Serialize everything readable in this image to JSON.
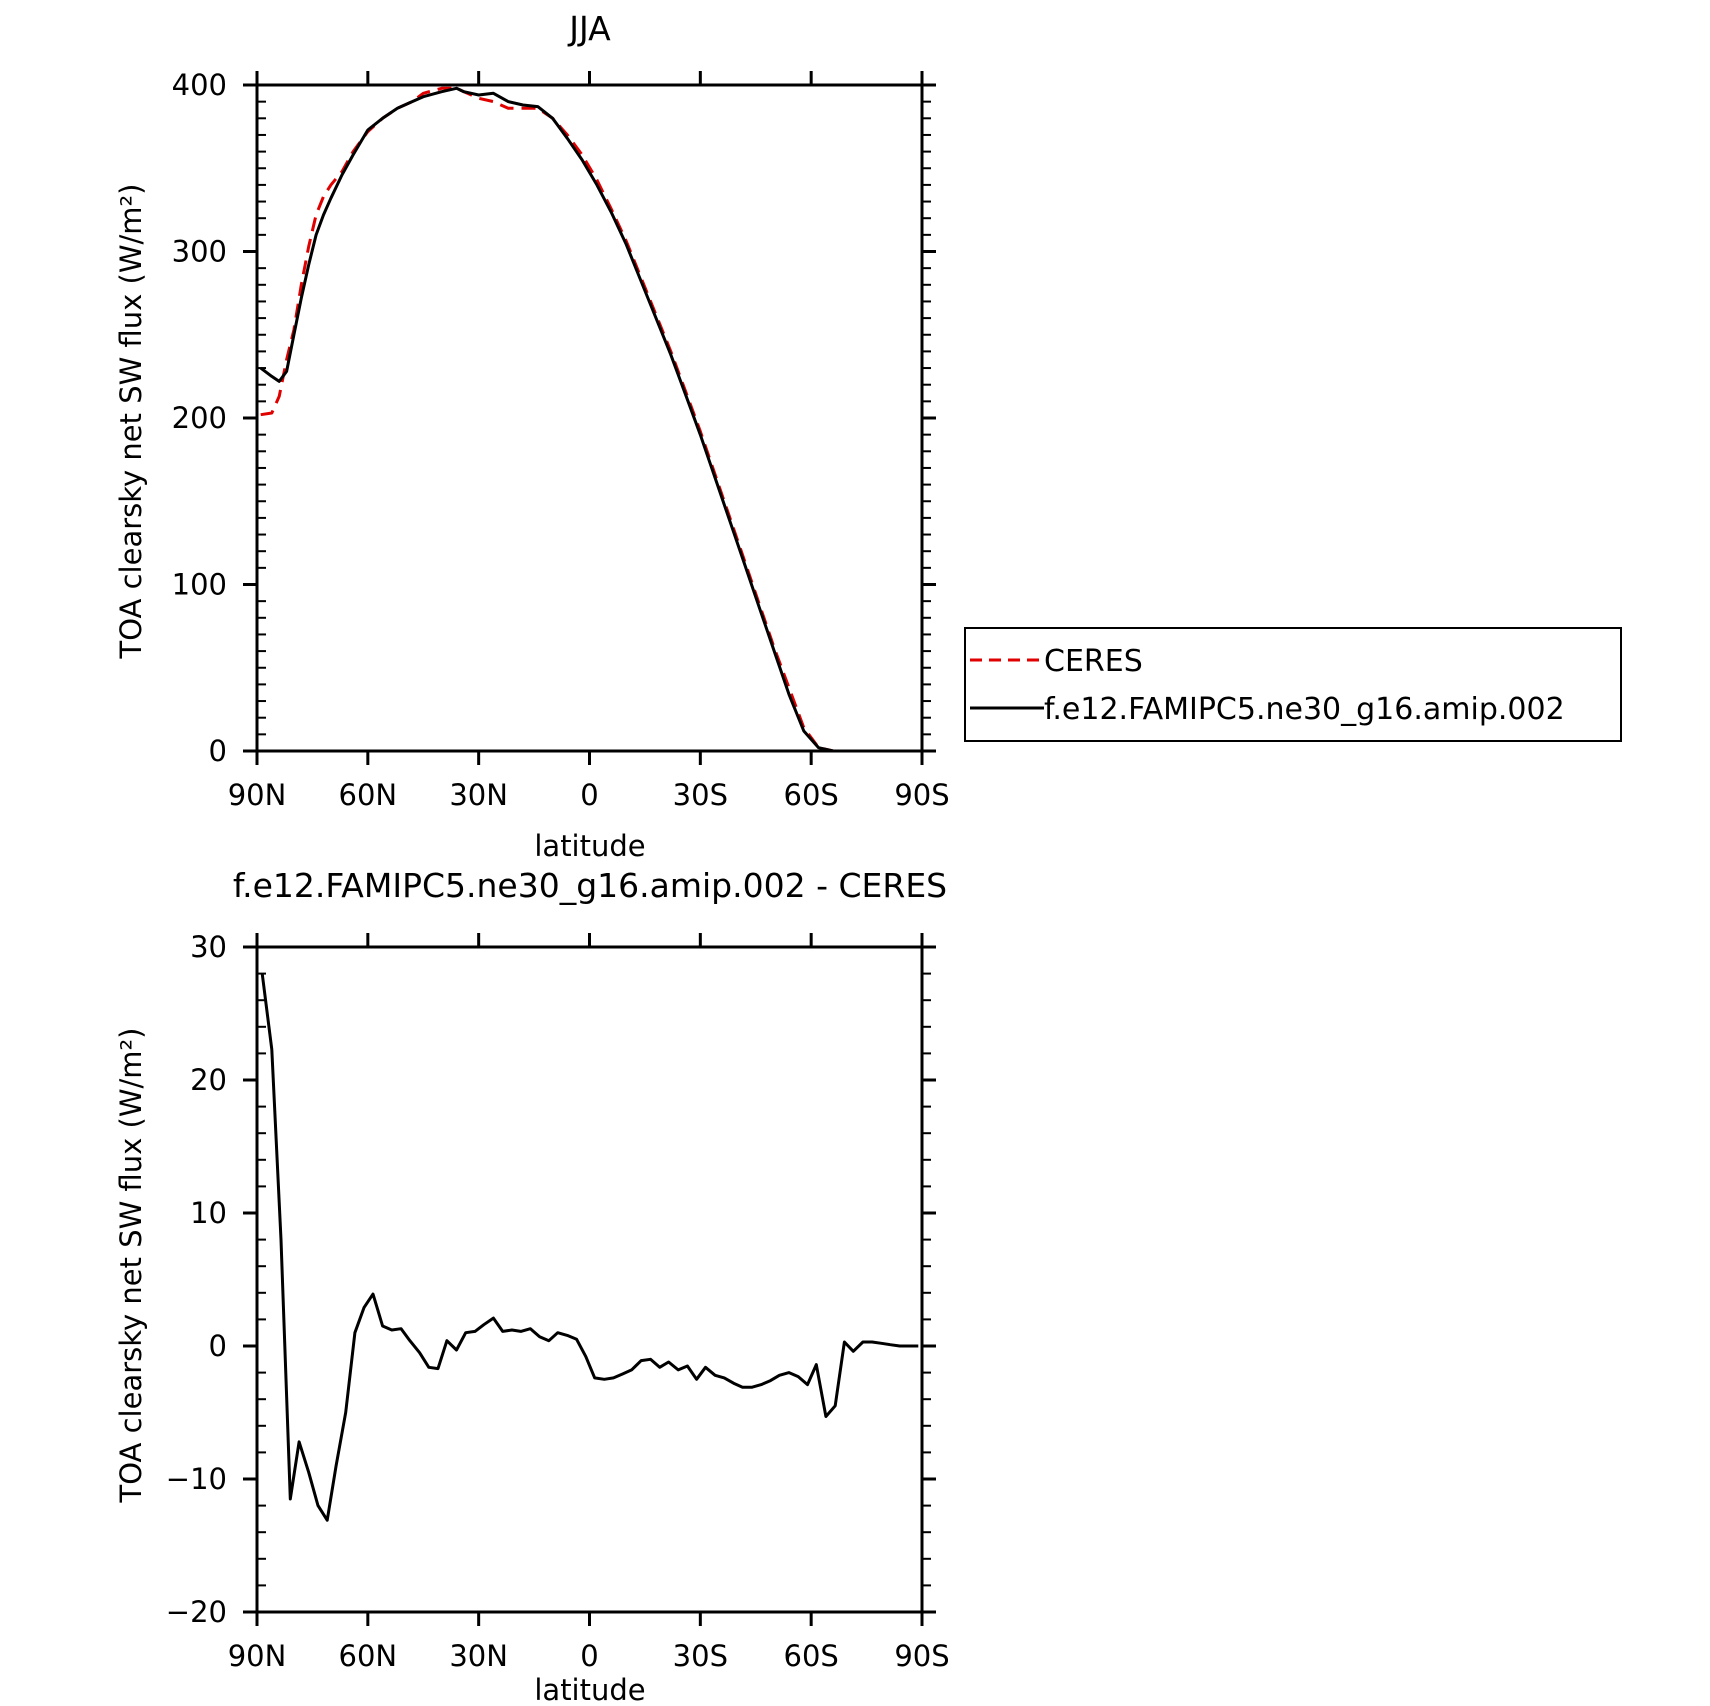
{
  "figure": {
    "colors": {
      "ceres": "#e00000",
      "model": "#000000",
      "frame": "#000000",
      "background": "#ffffff"
    },
    "legend": {
      "entries": [
        {
          "label": "CERES",
          "color": "#e00000",
          "style": "dashed"
        },
        {
          "label": "f.e12.FAMIPC5.ne30_g16.amip.002",
          "color": "#000000",
          "style": "solid"
        }
      ]
    }
  },
  "chart_data": [
    {
      "type": "line",
      "title": "JJA",
      "xlabel": "latitude",
      "ylabel": "TOA clearsky net SW flux (W/m²)",
      "xlim": [
        90,
        -90
      ],
      "ylim": [
        0,
        400
      ],
      "x_ticks": [
        90,
        60,
        30,
        0,
        -30,
        -60,
        -90
      ],
      "x_tick_labels": [
        "90N",
        "60N",
        "30N",
        "0",
        "30S",
        "60S",
        "90S"
      ],
      "y_ticks": [
        0,
        100,
        200,
        300,
        400
      ],
      "y_tick_labels": [
        "0",
        "100",
        "200",
        "300",
        "400"
      ],
      "legend_position": "right",
      "series": [
        {
          "name": "CERES",
          "color": "#e00000",
          "style": "dashed",
          "x": [
            89,
            86,
            84,
            82,
            80,
            78,
            76,
            74,
            72,
            70,
            67,
            64,
            60,
            56,
            52,
            48,
            45,
            40,
            36,
            34,
            30,
            26,
            22,
            18,
            14,
            10,
            6,
            2,
            -2,
            -6,
            -10,
            -14,
            -18,
            -22,
            -26,
            -30,
            -34,
            -38,
            -42,
            -46,
            -50,
            -54,
            -58,
            -62,
            -66,
            -70,
            -74,
            -78,
            -82
          ],
          "values": [
            202,
            203,
            213,
            235,
            253,
            280,
            303,
            322,
            333,
            340,
            348,
            360,
            372,
            380,
            386,
            390,
            395,
            398,
            398,
            396,
            392,
            390,
            386,
            386,
            386,
            380,
            370,
            358,
            343,
            325,
            306,
            284,
            262,
            240,
            216,
            192,
            166,
            140,
            114,
            88,
            62,
            38,
            14,
            2,
            0,
            0,
            0,
            0,
            0
          ]
        },
        {
          "name": "f.e12.FAMIPC5.ne30_g16.amip.002",
          "color": "#000000",
          "style": "solid",
          "x": [
            89,
            86,
            84,
            82,
            80,
            78,
            76,
            74,
            72,
            70,
            67,
            64,
            60,
            56,
            52,
            48,
            45,
            40,
            36,
            34,
            30,
            26,
            22,
            18,
            14,
            10,
            6,
            2,
            -2,
            -6,
            -10,
            -14,
            -18,
            -22,
            -26,
            -30,
            -34,
            -38,
            -42,
            -46,
            -50,
            -54,
            -58,
            -62,
            -66,
            -70,
            -74,
            -78,
            -82
          ],
          "values": [
            230,
            225,
            222,
            228,
            250,
            272,
            292,
            310,
            322,
            332,
            346,
            358,
            373,
            380,
            386,
            390,
            393,
            396,
            398,
            396,
            394,
            395,
            390,
            388,
            387,
            380,
            368,
            355,
            340,
            323,
            304,
            282,
            260,
            238,
            214,
            190,
            164,
            138,
            112,
            86,
            60,
            34,
            12,
            2,
            0,
            0,
            0,
            0,
            0
          ]
        }
      ]
    },
    {
      "type": "line",
      "title": "f.e12.FAMIPC5.ne30_g16.amip.002 - CERES",
      "xlabel": "latitude",
      "ylabel": "TOA clearsky net SW flux (W/m²)",
      "xlim": [
        90,
        -90
      ],
      "ylim": [
        -20,
        30
      ],
      "x_ticks": [
        90,
        60,
        30,
        0,
        -30,
        -60,
        -90
      ],
      "x_tick_labels": [
        "90N",
        "60N",
        "30N",
        "0",
        "30S",
        "60S",
        "90S"
      ],
      "y_ticks": [
        -20,
        -10,
        0,
        10,
        20,
        30
      ],
      "y_tick_labels": [
        "−20",
        "−10",
        "0",
        "10",
        "20",
        "30"
      ],
      "series": [
        {
          "color": "#000000",
          "style": "solid",
          "x": [
            88.6,
            86,
            83.5,
            81,
            78.6,
            76,
            73.5,
            71,
            68.6,
            66,
            63.5,
            61,
            58.6,
            56,
            53.5,
            51,
            48.6,
            46,
            43.5,
            41,
            38.6,
            36,
            33.5,
            31,
            28.6,
            26,
            23.5,
            21,
            18.6,
            16,
            13.5,
            11,
            8.6,
            6,
            3.5,
            1,
            -1.4,
            -4,
            -6.5,
            -9,
            -11.4,
            -14,
            -16.5,
            -19,
            -21.4,
            -24,
            -26.5,
            -29,
            -31.4,
            -34,
            -36.5,
            -39,
            -41.4,
            -44,
            -46.5,
            -49,
            -51.4,
            -54,
            -56.5,
            -59,
            -61.4,
            -64,
            -66.5,
            -69,
            -71.4,
            -74,
            -76.5,
            -79,
            -81.4,
            -84,
            -86.5,
            -89
          ],
          "values": [
            28,
            22.3,
            8,
            -11.5,
            -7.2,
            -9.5,
            -12,
            -13.1,
            -9,
            -5,
            1,
            2.9,
            3.9,
            1.5,
            1.2,
            1.3,
            0.4,
            -0.5,
            -1.6,
            -1.7,
            0.4,
            -0.3,
            1,
            1.1,
            1.6,
            2.1,
            1.1,
            1.2,
            1.1,
            1.3,
            0.7,
            0.4,
            1,
            0.8,
            0.5,
            -0.8,
            -2.4,
            -2.5,
            -2.4,
            -2.1,
            -1.8,
            -1.1,
            -1,
            -1.6,
            -1.2,
            -1.8,
            -1.5,
            -2.5,
            -1.6,
            -2.2,
            -2.4,
            -2.8,
            -3.1,
            -3.1,
            -2.9,
            -2.6,
            -2.2,
            -2,
            -2.3,
            -2.9,
            -1.4,
            -5.3,
            -4.5,
            0.3,
            -0.4,
            0.3,
            0.3,
            0.2,
            0.1,
            0,
            0,
            0
          ]
        }
      ]
    }
  ]
}
